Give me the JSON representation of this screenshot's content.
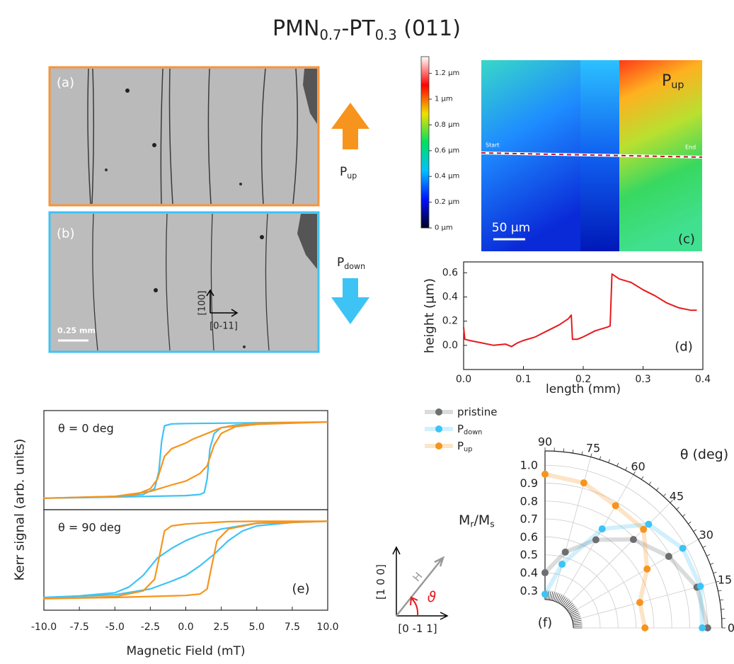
{
  "title": {
    "main1": "PMN",
    "sub1": "0.7",
    "main2": "-PT",
    "sub2": "0.3",
    "main3": " (011)"
  },
  "panels": {
    "a": {
      "label": "(a)"
    },
    "b": {
      "label": "(b)",
      "scale_bar": "0.25 mm",
      "axis_vertical": "[100]",
      "axis_horizontal": "[0-11]"
    },
    "arrows": {
      "up": {
        "text": "P",
        "sub": "up"
      },
      "down": {
        "text": "P",
        "sub": "down"
      }
    },
    "c": {
      "label": "(c)",
      "p_text": "P",
      "p_sub": "up",
      "scale_bar": "50 µm",
      "start": "Start",
      "end": "End"
    },
    "inset": {
      "vertical": "[1 0 0]",
      "horizontal": "[0 -1 1]",
      "field": "H",
      "angle": "ϑ"
    }
  },
  "chart_data": [
    {
      "type": "colorbar",
      "ylim": [
        0,
        1.33
      ],
      "yticks": [
        {
          "value": 0,
          "label": "0 µm"
        },
        {
          "value": 0.2,
          "label": "0.2 µm"
        },
        {
          "value": 0.4,
          "label": "0.4 µm"
        },
        {
          "value": 0.6,
          "label": "0.6 µm"
        },
        {
          "value": 0.8,
          "label": "0.8 µm"
        },
        {
          "value": 1,
          "label": "1 µm"
        },
        {
          "value": 1.2,
          "label": "1.2 µm"
        }
      ],
      "colors": [
        "#000020",
        "#0010ff",
        "#00c0ff",
        "#00e060",
        "#f0e000",
        "#ff0000",
        "#ffffff"
      ]
    },
    {
      "type": "line",
      "label": "(d)",
      "xlabel": "length (mm)",
      "ylabel": "height (µm)",
      "xlim": [
        0,
        0.4
      ],
      "ylim": [
        -0.2,
        0.69
      ],
      "xticks": [
        {
          "value": 0,
          "label": "0.0"
        },
        0.1,
        0.2,
        0.3,
        0.4
      ],
      "yticks": [
        {
          "value": 0,
          "label": "0.0"
        },
        0.2,
        0.4,
        0.6
      ],
      "x": [
        0,
        0.002,
        0.01,
        0.03,
        0.05,
        0.07,
        0.08,
        0.09,
        0.1,
        0.12,
        0.14,
        0.16,
        0.175,
        0.18,
        0.182,
        0.19,
        0.2,
        0.22,
        0.24,
        0.245,
        0.248,
        0.26,
        0.28,
        0.3,
        0.32,
        0.34,
        0.36,
        0.38,
        0.39
      ],
      "series": [
        {
          "color": "#e8191c",
          "values": [
            0.15,
            0.05,
            0.04,
            0.02,
            0.0,
            0.01,
            -0.01,
            0.02,
            0.04,
            0.07,
            0.12,
            0.17,
            0.22,
            0.25,
            0.05,
            0.05,
            0.07,
            0.12,
            0.15,
            0.16,
            0.59,
            0.55,
            0.52,
            0.46,
            0.41,
            0.35,
            0.31,
            0.29,
            0.29
          ]
        }
      ]
    },
    {
      "type": "line",
      "annotation": "θ = 0 deg",
      "xlim": [
        -10,
        10
      ],
      "ylim": [
        -1.3,
        1.3
      ],
      "series": [
        {
          "color": "#3ec3f5",
          "x": [
            10,
            5,
            2.5,
            0,
            -1,
            -1.5,
            -1.7,
            -1.9,
            -2.2,
            -3,
            -5,
            -10,
            -5,
            0,
            1,
            1.3,
            1.5,
            1.7,
            2,
            2.5,
            3.5,
            5,
            10
          ],
          "values": [
            1,
            0.98,
            0.97,
            0.96,
            0.95,
            0.9,
            0.5,
            -0.3,
            -0.75,
            -0.9,
            -0.95,
            -1,
            -0.97,
            -0.93,
            -0.9,
            -0.85,
            -0.5,
            0.3,
            0.7,
            0.85,
            0.92,
            0.96,
            1
          ]
        },
        {
          "color": "#f7941d",
          "x": [
            10,
            5,
            2.5,
            1.5,
            0.5,
            0,
            -1,
            -1.5,
            -2,
            -2.5,
            -3.5,
            -5,
            -10,
            -5,
            -2.5,
            -1,
            0,
            1,
            1.5,
            2,
            2.5,
            3.5,
            5,
            10
          ],
          "values": [
            1,
            0.97,
            0.85,
            0.7,
            0.55,
            0.45,
            0.3,
            0.1,
            -0.5,
            -0.75,
            -0.9,
            -0.95,
            -1,
            -0.95,
            -0.82,
            -0.65,
            -0.55,
            -0.35,
            -0.15,
            0.4,
            0.7,
            0.88,
            0.94,
            1
          ]
        }
      ]
    },
    {
      "type": "line",
      "annotation": "θ = 90 deg",
      "label": "(e)",
      "xlabel": "Magnetic Field (mT)",
      "ylabel": "Kerr signal (arb. units)",
      "xlim": [
        -10,
        10
      ],
      "ylim": [
        -1.3,
        1.3
      ],
      "xticks": [
        {
          "value": -10,
          "label": "-10.0"
        },
        {
          "value": -7.5,
          "label": "-7.5"
        },
        {
          "value": -5,
          "label": "-5.0"
        },
        {
          "value": -2.5,
          "label": "-2.5"
        },
        {
          "value": 0,
          "label": "0.0"
        },
        {
          "value": 2.5,
          "label": "2.5"
        },
        {
          "value": 5,
          "label": "5.0"
        },
        {
          "value": 7.5,
          "label": "7.5"
        },
        {
          "value": 10,
          "label": "10.0"
        }
      ],
      "series": [
        {
          "color": "#3ec3f5",
          "x": [
            10,
            5,
            2.5,
            1,
            0,
            -1,
            -2,
            -3,
            -4,
            -5,
            -7.5,
            -10,
            -5,
            -2.5,
            -1,
            0,
            1,
            2,
            3,
            4,
            5,
            7.5,
            10
          ],
          "values": [
            1,
            0.95,
            0.8,
            0.65,
            0.5,
            0.3,
            0.05,
            -0.4,
            -0.7,
            -0.85,
            -0.93,
            -0.97,
            -0.9,
            -0.75,
            -0.55,
            -0.4,
            -0.15,
            0.15,
            0.5,
            0.75,
            0.88,
            0.97,
            1
          ]
        },
        {
          "color": "#f7941d",
          "x": [
            10,
            5,
            3,
            2,
            0,
            -1,
            -1.5,
            -1.8,
            -2.2,
            -3,
            -5,
            -10,
            -5,
            0,
            1,
            1.5,
            1.8,
            2.2,
            3,
            5,
            10
          ],
          "values": [
            1,
            1,
            0.99,
            0.97,
            0.93,
            0.88,
            0.75,
            0.2,
            -0.5,
            -0.8,
            -0.95,
            -1,
            -0.97,
            -0.92,
            -0.88,
            -0.75,
            -0.2,
            0.5,
            0.8,
            0.95,
            1
          ]
        }
      ]
    },
    {
      "type": "polar",
      "label": "(f)",
      "angle_label": "θ (deg)",
      "rlabel": {
        "m1": "M",
        "s1": "r",
        "m2": "/M",
        "s2": "s"
      },
      "rlim": [
        0.25,
        1.08
      ],
      "rticks": [
        0.3,
        0.4,
        0.5,
        0.6,
        0.7,
        0.8,
        0.9,
        {
          "value": 1,
          "label": "1.0"
        }
      ],
      "thetaticks": [
        0,
        15,
        30,
        45,
        60,
        75,
        90
      ],
      "theta": [
        0,
        15,
        30,
        45,
        60,
        75,
        90
      ],
      "series": [
        {
          "name": "pristine",
          "color": "#6d6e71",
          "values": [
            1.0,
            0.97,
            0.89,
            0.79,
            0.66,
            0.53,
            0.4
          ]
        },
        {
          "name": "P",
          "sub": "down",
          "color": "#3ec3f5",
          "values": [
            0.97,
            0.99,
            0.98,
            0.91,
            0.73,
            0.46,
            0.28
          ]
        },
        {
          "name": "P",
          "sub": "up",
          "color": "#f7941d",
          "values": [
            0.65,
            0.64,
            0.75,
            0.87,
            0.88,
            0.93,
            0.95
          ]
        }
      ]
    }
  ]
}
